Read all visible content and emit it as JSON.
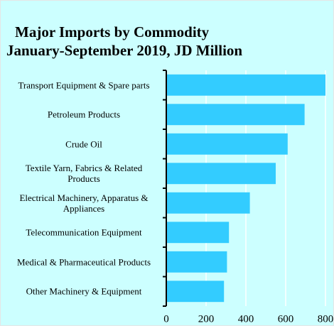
{
  "chart_data": {
    "type": "bar",
    "orientation": "horizontal",
    "title": "Major Imports by Commodity",
    "subtitle": "January-September  2019, JD Million",
    "categories": [
      "Transport Equipment & Spare parts",
      "Petroleum Products",
      "Crude Oil",
      "Textile Yarn, Fabrics & Related Products",
      "Electrical Machinery, Apparatus & Appliances",
      "Telecommunication Equipment",
      "Medical & Pharmaceutical Products",
      "Other Machinery & Equipment"
    ],
    "values": [
      800,
      695,
      610,
      550,
      420,
      315,
      305,
      290
    ],
    "color": "#33ccff",
    "xlim": [
      0,
      800
    ],
    "xticks": [
      0,
      200,
      400,
      600,
      800
    ],
    "grid": true
  }
}
